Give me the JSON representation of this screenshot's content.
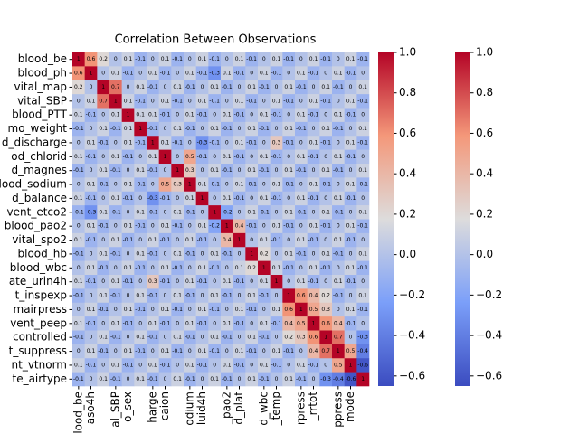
{
  "chart_data": {
    "type": "heatmap",
    "title": "Correlation Between Observations",
    "rows": [
      "blood_be",
      "blood_ph",
      "vital_map",
      "vital_SBP",
      "blood_PTT",
      "mo_weight",
      "d_discharge",
      "od_chlorid",
      "d_magnes",
      "blood_sodium",
      "d_balance",
      "vent_etco2",
      "blood_pao2",
      "vital_spo2",
      "blood_hb",
      "blood_wbc",
      "ate_urin4h",
      "t_inspexp",
      "mairpress",
      "vent_peep",
      "controlled",
      "t_suppress",
      "nt_vtnorm",
      "te_airtype"
    ],
    "categories": [
      "blood_be",
      "aso4h",
      null,
      "al_SBP",
      "o_sex",
      null,
      "harge",
      "caion",
      null,
      "odium",
      "luid4h",
      null,
      "_pao2",
      "d_plat",
      null,
      "d_wbc",
      "_temp",
      null,
      "rpress",
      "_rrtot",
      null,
      "ppress",
      "mode",
      null
    ],
    "values": [
      [
        1,
        0.6,
        0.2,
        0,
        0.1,
        -0.1,
        0,
        0.1,
        -0.1,
        0,
        0.1,
        -0.1,
        0,
        0.1,
        -0.1,
        0,
        0.1,
        -0.1,
        0,
        0.1,
        -0.1,
        0,
        0.1,
        -0.1
      ],
      [
        0.6,
        1,
        0,
        0.1,
        -0.1,
        0,
        0.1,
        -0.1,
        0,
        0.1,
        -0.1,
        -0.3,
        0.1,
        -0.1,
        0,
        0.1,
        -0.1,
        0,
        0.1,
        -0.1,
        0,
        0.1,
        -0.1,
        0
      ],
      [
        0.2,
        0,
        1,
        0.7,
        0,
        0.1,
        -0.1,
        0,
        0.1,
        -0.1,
        0,
        0.1,
        -0.1,
        0,
        0.1,
        -0.1,
        0,
        0.1,
        -0.1,
        0,
        0.1,
        -0.1,
        0,
        0.1
      ],
      [
        0,
        0.1,
        0.7,
        1,
        0.1,
        -0.1,
        0,
        0.1,
        -0.1,
        0,
        0.1,
        -0.1,
        0,
        0.1,
        -0.1,
        0,
        0.1,
        -0.1,
        0,
        0.1,
        -0.1,
        0,
        0.1,
        -0.1
      ],
      [
        0.1,
        -0.1,
        0,
        0.1,
        1,
        0.1,
        0.1,
        -0.1,
        0,
        0.1,
        -0.1,
        0,
        0.1,
        -0.1,
        0,
        0.1,
        -0.1,
        0,
        0.1,
        -0.1,
        0,
        0.1,
        -0.1,
        0
      ],
      [
        -0.1,
        0,
        0.1,
        -0.1,
        0.1,
        1,
        -0.1,
        0,
        0.1,
        -0.1,
        0,
        0.1,
        -0.1,
        0,
        0.1,
        -0.1,
        0,
        0.1,
        -0.1,
        0,
        0.1,
        -0.1,
        0,
        0.1
      ],
      [
        0,
        0.1,
        -0.1,
        0,
        0.1,
        -0.1,
        1,
        0.1,
        -0.1,
        0,
        -0.3,
        -0.1,
        0,
        0.1,
        -0.1,
        0,
        0.3,
        -0.1,
        0,
        0.1,
        -0.1,
        0,
        0.1,
        -0.1
      ],
      [
        0.1,
        -0.1,
        0,
        0.1,
        -0.1,
        0,
        0.1,
        1,
        0,
        0.5,
        -0.1,
        0,
        0.1,
        -0.1,
        0,
        0.1,
        -0.1,
        0,
        0.1,
        -0.1,
        0,
        0.1,
        -0.1,
        0
      ],
      [
        -0.1,
        0,
        0.1,
        -0.1,
        0,
        0.1,
        -0.1,
        0,
        1,
        0.3,
        0,
        0.1,
        -0.1,
        0,
        0.1,
        -0.1,
        0,
        0.1,
        -0.1,
        0,
        0.1,
        -0.1,
        0,
        0.1
      ],
      [
        0,
        0.1,
        -0.1,
        0,
        0.1,
        -0.1,
        0,
        0.5,
        0.3,
        1,
        0.1,
        -0.1,
        0,
        0.1,
        -0.1,
        0,
        0.1,
        -0.1,
        0,
        0.1,
        -0.1,
        0,
        0.1,
        -0.1
      ],
      [
        0.1,
        -0.1,
        0,
        0.1,
        -0.1,
        0,
        -0.3,
        -0.1,
        0,
        0.1,
        1,
        0,
        0.1,
        -0.1,
        0,
        0.1,
        -0.1,
        0,
        0.1,
        -0.1,
        0,
        0.1,
        -0.1,
        0
      ],
      [
        -0.1,
        -0.3,
        0.1,
        -0.1,
        0,
        0.1,
        -0.1,
        0,
        0.1,
        -0.1,
        0,
        1,
        -0.2,
        0,
        0.1,
        -0.1,
        0,
        0.1,
        -0.1,
        0,
        0.1,
        -0.1,
        0,
        0.1
      ],
      [
        0,
        0.1,
        -0.1,
        0,
        0.1,
        -0.1,
        0,
        0.1,
        -0.1,
        0,
        0.1,
        -0.2,
        1,
        0.4,
        -0.1,
        0,
        0.1,
        -0.1,
        0,
        0.1,
        -0.1,
        0,
        0.1,
        -0.1
      ],
      [
        0.1,
        -0.1,
        0,
        0.1,
        -0.1,
        0,
        0.1,
        -0.1,
        0,
        0.1,
        -0.1,
        0,
        0.4,
        1,
        0,
        0.1,
        -0.1,
        0,
        0.1,
        -0.1,
        0,
        0.1,
        -0.1,
        0
      ],
      [
        -0.1,
        0,
        0.1,
        -0.1,
        0,
        0.1,
        -0.1,
        0,
        0.1,
        -0.1,
        0,
        0.1,
        -0.1,
        0,
        1,
        0.2,
        0,
        0.1,
        -0.1,
        0,
        0.1,
        -0.1,
        0,
        0.1
      ],
      [
        0,
        0.1,
        -0.1,
        0,
        0.1,
        -0.1,
        0,
        0.1,
        -0.1,
        0,
        0.1,
        -0.1,
        0,
        0.1,
        0.2,
        1,
        0.1,
        -0.1,
        0,
        0.1,
        -0.1,
        0,
        0.1,
        -0.1
      ],
      [
        0.1,
        -0.1,
        0,
        0.1,
        -0.1,
        0,
        0.3,
        -0.1,
        0,
        0.1,
        -0.1,
        0,
        0.1,
        -0.1,
        0,
        0.1,
        1,
        0,
        0.1,
        -0.1,
        0,
        0.1,
        -0.1,
        0
      ],
      [
        -0.1,
        0,
        0.1,
        -0.1,
        0,
        0.1,
        -0.1,
        0,
        0.1,
        -0.1,
        0,
        0.1,
        -0.1,
        0,
        0.1,
        -0.1,
        0,
        1,
        0.6,
        0.4,
        0.2,
        -0.1,
        0,
        0.1
      ],
      [
        0,
        0.1,
        -0.1,
        0,
        0.1,
        -0.1,
        0,
        0.1,
        -0.1,
        0,
        0.1,
        -0.1,
        0,
        0.1,
        -0.1,
        0,
        0.1,
        0.6,
        1,
        0.5,
        0.3,
        0,
        0.1,
        -0.1
      ],
      [
        0.1,
        -0.1,
        0,
        0.1,
        -0.1,
        0,
        0.1,
        -0.1,
        0,
        0.1,
        -0.1,
        0,
        0.1,
        -0.1,
        0,
        0.1,
        -0.1,
        0.4,
        0.5,
        1,
        0.6,
        0.4,
        -0.1,
        0
      ],
      [
        -0.1,
        0,
        0.1,
        -0.1,
        0,
        0.1,
        -0.1,
        0,
        0.1,
        -0.1,
        0,
        0.1,
        -0.1,
        0,
        0.1,
        -0.1,
        0,
        0.2,
        0.3,
        0.6,
        1,
        0.7,
        0,
        -0.3
      ],
      [
        0,
        0.1,
        -0.1,
        0,
        0.1,
        -0.1,
        0,
        0.1,
        -0.1,
        0,
        0.1,
        -0.1,
        0,
        0.1,
        -0.1,
        0,
        0.1,
        -0.1,
        0,
        0.4,
        0.7,
        1,
        0.5,
        -0.4
      ],
      [
        0.1,
        -0.1,
        0,
        0.1,
        -0.1,
        0,
        0.1,
        -0.1,
        0,
        0.1,
        -0.1,
        0,
        0.1,
        -0.1,
        0,
        0.1,
        -0.1,
        0,
        0.1,
        -0.1,
        0,
        0.5,
        1,
        -0.6
      ],
      [
        -0.1,
        0,
        0.1,
        -0.1,
        0,
        0.1,
        -0.1,
        0,
        0.1,
        -0.1,
        0,
        0.1,
        -0.1,
        0,
        0.1,
        -0.1,
        0,
        0.1,
        -0.1,
        0,
        -0.3,
        -0.4,
        -0.6,
        1
      ]
    ],
    "zlim": [
      -0.65,
      1.0
    ],
    "colorscale": [
      "#3b4cc0",
      "#7b9ff9",
      "#dddcdc",
      "#f4987a",
      "#b40426"
    ],
    "annotation_color": "#000000",
    "colorbar_ticks": [
      {
        "value": 1.0,
        "label": "1.0"
      },
      0.8,
      0.6,
      0.4,
      0.2,
      {
        "value": 0.0,
        "label": "0.0"
      },
      {
        "value": -0.2,
        "label": "−0.2"
      },
      {
        "value": -0.4,
        "label": "−0.4"
      },
      {
        "value": -0.6,
        "label": "−0.6"
      }
    ],
    "colorbar_count": 2
  }
}
